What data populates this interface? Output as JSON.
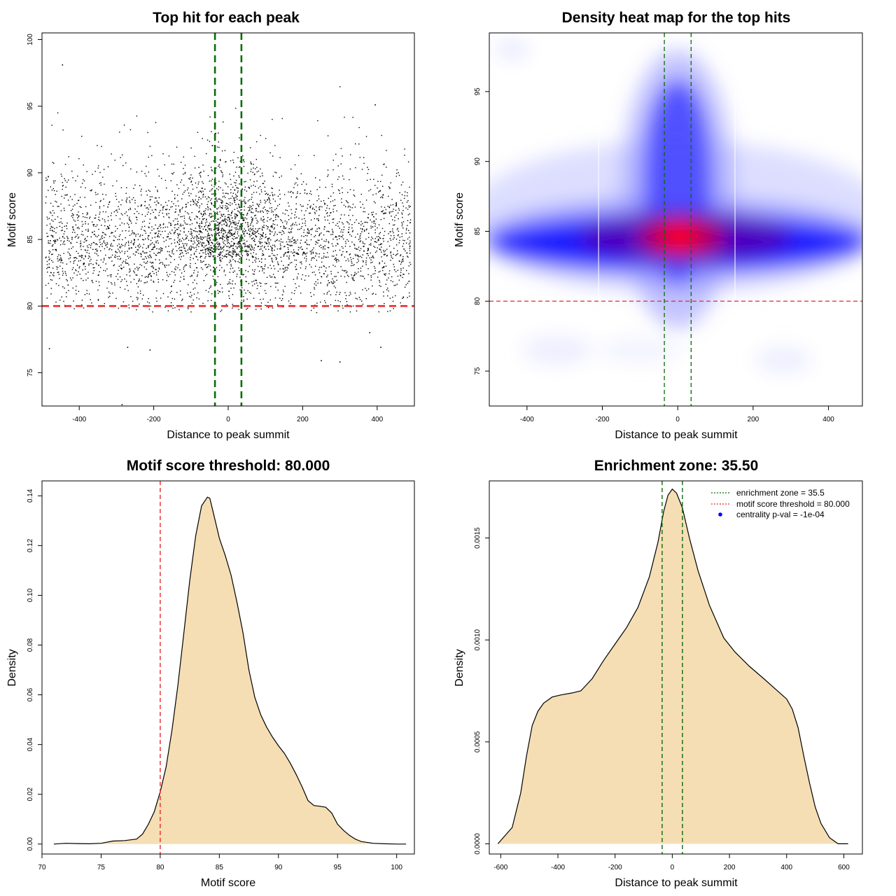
{
  "colors": {
    "threshold": "#e8282b",
    "zone": "#0b6b0b",
    "density_fill": "#f5deb3",
    "heat_low": "#ffffff",
    "heat_mid": "#0000ff",
    "heat_high": "#ff0000",
    "points": "#000000",
    "legend_dot": "#0000ff"
  },
  "chart_data": [
    {
      "type": "scatter",
      "title": "Top hit for each peak",
      "xlabel": "Distance to peak summit",
      "ylabel": "Motif score",
      "xlim": [
        -500,
        500
      ],
      "ylim": [
        72.5,
        100.5
      ],
      "xticks": [
        -400,
        -200,
        0,
        200,
        400
      ],
      "yticks": [
        75,
        80,
        85,
        90,
        95,
        100
      ],
      "xtick_labels": [
        "-400",
        "-200",
        "0",
        "200",
        "400"
      ],
      "ytick_labels": [
        "75",
        "80",
        "85",
        "90",
        "95",
        "100"
      ],
      "point_count": 4000,
      "distribution": {
        "x_range": [
          -490,
          490
        ],
        "y_mode": 84.5,
        "central_boost_zone": [
          -35.5,
          35.5
        ]
      },
      "outliers": [
        {
          "x": -445,
          "y": 98.1
        },
        {
          "x": -285,
          "y": 72.6
        },
        {
          "x": -480,
          "y": 76.8
        },
        {
          "x": -270,
          "y": 76.9
        },
        {
          "x": -210,
          "y": 76.7
        },
        {
          "x": 300,
          "y": 75.8
        },
        {
          "x": 395,
          "y": 95.1
        },
        {
          "x": 250,
          "y": 75.9
        },
        {
          "x": 380,
          "y": 78.0
        },
        {
          "x": 410,
          "y": 76.9
        }
      ],
      "hlines": [
        {
          "y": 80.0,
          "color": "threshold"
        }
      ],
      "vlines": [
        {
          "x": -35.5,
          "color": "zone"
        },
        {
          "x": 35.5,
          "color": "zone"
        }
      ],
      "grid": false
    },
    {
      "type": "heatmap",
      "title": "Density heat map for the top hits",
      "xlabel": "Distance to peak summit",
      "ylabel": "Motif score",
      "xlim": [
        -500,
        490
      ],
      "ylim": [
        72.5,
        99.2
      ],
      "xticks": [
        -400,
        -200,
        0,
        200,
        400
      ],
      "yticks": [
        75,
        80,
        85,
        90,
        95
      ],
      "xtick_labels": [
        "-400",
        "-200",
        "0",
        "200",
        "400"
      ],
      "ytick_labels": [
        "75",
        "80",
        "85",
        "90",
        "95"
      ],
      "color_scale": [
        "#ffffff",
        "#0000ff",
        "#ff0000"
      ],
      "peak": {
        "x": 0,
        "y": 84.5
      },
      "hlines": [
        {
          "y": 80.0,
          "color": "threshold"
        }
      ],
      "vlines": [
        {
          "x": -35.5,
          "color": "zone"
        },
        {
          "x": 35.5,
          "color": "zone"
        }
      ],
      "grid": false
    },
    {
      "type": "area",
      "title": "Motif score threshold: 80.000",
      "xlabel": "Motif score",
      "ylabel": "Density",
      "xlim": [
        70,
        101.5
      ],
      "ylim": [
        -0.004,
        0.146
      ],
      "xticks": [
        70,
        75,
        80,
        85,
        90,
        95,
        100
      ],
      "yticks": [
        0,
        0.02,
        0.04,
        0.06,
        0.08,
        0.1,
        0.12,
        0.14
      ],
      "xtick_labels": [
        "70",
        "75",
        "80",
        "85",
        "90",
        "95",
        "100"
      ],
      "ytick_labels": [
        "0.00",
        "0.02",
        "0.04",
        "0.06",
        "0.08",
        "0.10",
        "0.12",
        "0.14"
      ],
      "x": [
        71.0,
        72.0,
        73.0,
        74.0,
        75.0,
        76.0,
        77.0,
        78.0,
        78.5,
        79.0,
        79.5,
        80.0,
        80.5,
        81.0,
        81.5,
        82.0,
        82.5,
        83.0,
        83.5,
        84.0,
        84.2,
        84.5,
        84.8,
        85.0,
        85.5,
        86.0,
        86.5,
        87.0,
        87.5,
        88.0,
        88.5,
        89.0,
        89.5,
        90.0,
        90.5,
        91.0,
        91.5,
        92.0,
        92.5,
        93.0,
        93.5,
        94.0,
        94.5,
        95.0,
        95.5,
        96.0,
        96.5,
        97.0,
        98.0,
        99.0,
        100.0,
        100.8
      ],
      "y": [
        0.0,
        0.0003,
        0.0002,
        0.0001,
        0.0003,
        0.0012,
        0.0014,
        0.002,
        0.004,
        0.008,
        0.013,
        0.021,
        0.031,
        0.046,
        0.064,
        0.085,
        0.106,
        0.124,
        0.136,
        0.1395,
        0.139,
        0.133,
        0.127,
        0.123,
        0.116,
        0.108,
        0.097,
        0.085,
        0.07,
        0.059,
        0.052,
        0.047,
        0.043,
        0.0395,
        0.0365,
        0.0325,
        0.028,
        0.023,
        0.0175,
        0.0155,
        0.0152,
        0.0148,
        0.0125,
        0.008,
        0.0055,
        0.0035,
        0.002,
        0.001,
        0.0003,
        0.0001,
        0.0,
        0.0
      ],
      "vlines": [
        {
          "x": 80.0,
          "color": "threshold"
        }
      ],
      "grid": false
    },
    {
      "type": "area",
      "title": "Enrichment zone: 35.50",
      "xlabel": "Distance to peak summit",
      "ylabel": "Density",
      "xlim": [
        -640,
        665
      ],
      "ylim": [
        -5e-05,
        0.00178
      ],
      "xticks": [
        -600,
        -400,
        -200,
        0,
        200,
        400,
        600
      ],
      "yticks": [
        0.0,
        0.0005,
        0.001,
        0.0015
      ],
      "xtick_labels": [
        "-600",
        "-400",
        "-200",
        "0",
        "200",
        "400",
        "600"
      ],
      "ytick_labels": [
        "0.0000",
        "0.0005",
        "0.0010",
        "0.0015"
      ],
      "x": [
        -610,
        -560,
        -530,
        -510,
        -490,
        -470,
        -450,
        -420,
        -390,
        -350,
        -320,
        -280,
        -240,
        -200,
        -160,
        -120,
        -80,
        -50,
        -30,
        -15,
        0,
        15,
        35,
        60,
        90,
        130,
        180,
        220,
        270,
        320,
        360,
        400,
        420,
        440,
        460,
        480,
        500,
        520,
        550,
        580,
        615
      ],
      "y": [
        0.0,
        8e-05,
        0.00025,
        0.00043,
        0.00058,
        0.00065,
        0.00069,
        0.00072,
        0.00073,
        0.00074,
        0.00075,
        0.00081,
        0.0009,
        0.00098,
        0.00106,
        0.00116,
        0.00131,
        0.00148,
        0.00163,
        0.00171,
        0.00174,
        0.00172,
        0.00165,
        0.0015,
        0.00134,
        0.00117,
        0.00101,
        0.00094,
        0.00087,
        0.00081,
        0.00076,
        0.00071,
        0.00066,
        0.00057,
        0.00043,
        0.0003,
        0.00018,
        0.0001,
        3e-05,
        0.0,
        0.0
      ],
      "vlines": [
        {
          "x": -35.5,
          "color": "zone"
        },
        {
          "x": 35.5,
          "color": "zone"
        }
      ],
      "legend": {
        "placement": "top-right",
        "items": [
          {
            "label": "enrichment zone = 35.5",
            "style": "dotted-line",
            "color": "zone"
          },
          {
            "label": "motif score threshold = 80.000",
            "style": "dotted-line",
            "color": "threshold"
          },
          {
            "label": "centrality p-val = -1e-04",
            "style": "dot",
            "color": "legend_dot"
          }
        ]
      },
      "grid": false
    }
  ]
}
